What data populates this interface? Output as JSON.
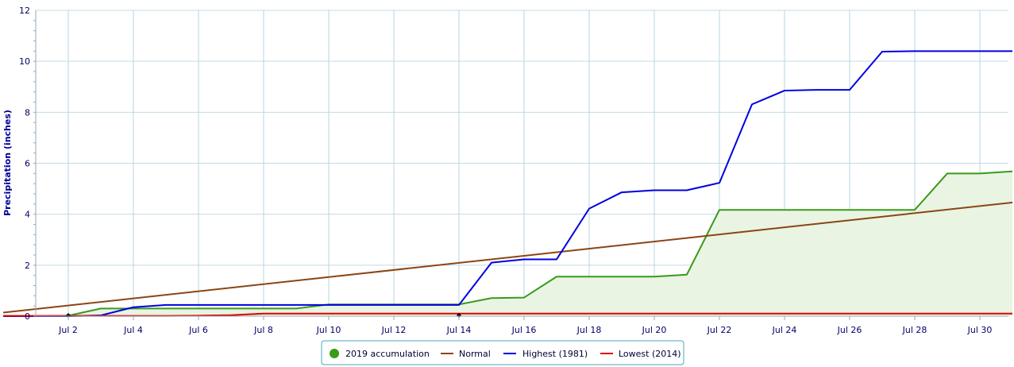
{
  "chart_data": {
    "type": "line",
    "title": "",
    "xlabel": "",
    "ylabel": "Precipitation (inches)",
    "ylim": [
      0,
      12
    ],
    "xlim_days": [
      1,
      31
    ],
    "x_tick_labels": [
      "Jul 2",
      "Jul 4",
      "Jul 6",
      "Jul 8",
      "Jul 10",
      "Jul 12",
      "Jul 14",
      "Jul 16",
      "Jul 18",
      "Jul 20",
      "Jul 22",
      "Jul 24",
      "Jul 26",
      "Jul 28",
      "Jul 30"
    ],
    "x_tick_days": [
      2,
      4,
      6,
      8,
      10,
      12,
      14,
      16,
      18,
      20,
      22,
      24,
      26,
      28,
      30
    ],
    "y_ticks": [
      0,
      2,
      4,
      6,
      8,
      10,
      12
    ],
    "grid": true,
    "legend_position": "bottom-center",
    "series": [
      {
        "name": "2019 accumulation",
        "color": "#3a9a1a",
        "fill": "#e9f4e3",
        "marker": "circle",
        "x": [
          1,
          2,
          3,
          4,
          5,
          6,
          7,
          8,
          9,
          10,
          11,
          12,
          13,
          14,
          15,
          16,
          17,
          18,
          19,
          20,
          21,
          22,
          23,
          24,
          25,
          26,
          27,
          28,
          29,
          30,
          31
        ],
        "y": [
          0.0,
          0.02,
          0.3,
          0.3,
          0.3,
          0.3,
          0.3,
          0.3,
          0.3,
          0.46,
          0.46,
          0.46,
          0.46,
          0.46,
          0.71,
          0.73,
          1.55,
          1.55,
          1.55,
          1.55,
          1.63,
          4.17,
          4.17,
          4.17,
          4.17,
          4.17,
          4.17,
          4.17,
          5.6,
          5.6,
          5.68
        ]
      },
      {
        "name": "Normal",
        "color": "#8b4513",
        "marker": "line",
        "x": [
          0,
          31
        ],
        "y": [
          0.14,
          4.46
        ]
      },
      {
        "name": "Highest (1981)",
        "color": "#0000e0",
        "marker": "line",
        "x": [
          0,
          1,
          2,
          3,
          4,
          5,
          6,
          7,
          8,
          9,
          10,
          11,
          12,
          13,
          14,
          15,
          16,
          17,
          18,
          19,
          20,
          21,
          22,
          23,
          24,
          25,
          26,
          27,
          28,
          29,
          30,
          31
        ],
        "y": [
          0.0,
          0.0,
          0.0,
          0.03,
          0.35,
          0.44,
          0.44,
          0.44,
          0.44,
          0.44,
          0.44,
          0.44,
          0.44,
          0.44,
          0.44,
          2.1,
          2.23,
          2.23,
          4.22,
          4.86,
          4.94,
          4.94,
          5.23,
          8.31,
          8.85,
          8.88,
          8.88,
          10.38,
          10.4,
          10.4,
          10.4,
          10.4
        ]
      },
      {
        "name": "Lowest (2014)",
        "color": "#e00000",
        "marker": "line",
        "x": [
          0,
          5,
          6,
          7,
          8,
          31
        ],
        "y": [
          0.01,
          0.01,
          0.02,
          0.04,
          0.1,
          0.1
        ]
      }
    ]
  }
}
